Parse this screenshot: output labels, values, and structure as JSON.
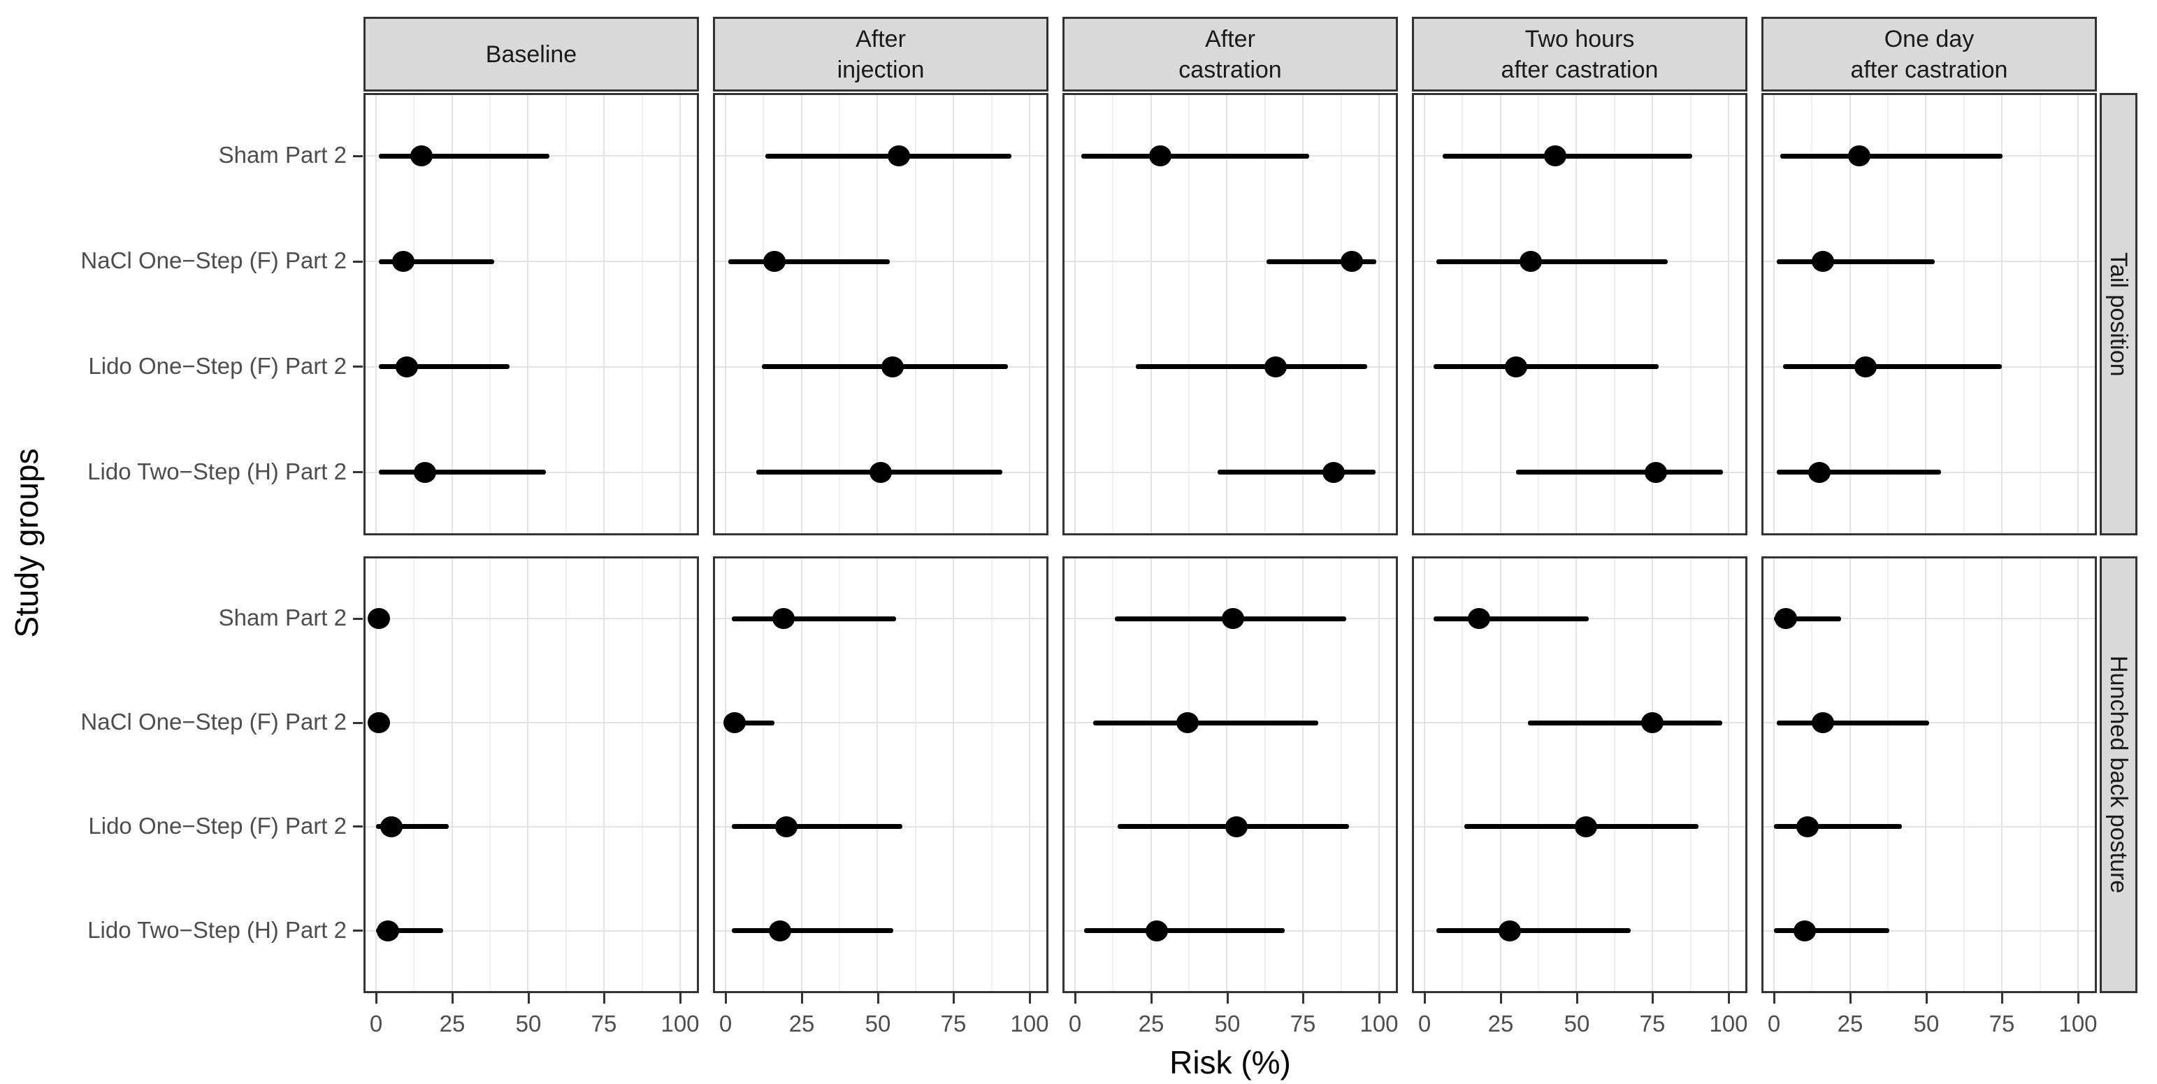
{
  "colors": {
    "background": "#ffffff",
    "strip_fill": "#d9d9d9",
    "panel_border": "#333333",
    "grid_major": "#e3e3e3",
    "grid_minor": "#f0f0f0",
    "data_black": "#000000",
    "axis_text": "#4d4d4d"
  },
  "chart_data": {
    "type": "scatter",
    "subtype": "faceted-forest-plot-dot-with-interval",
    "title": "",
    "xlabel": "Risk (%)",
    "ylabel": "Study groups",
    "xlim": [
      0,
      100
    ],
    "x_ticks": [
      0,
      25,
      50,
      75,
      100
    ],
    "grid": "vertical major+minor, horizontal major per group row",
    "legend": "none",
    "facet_columns": [
      "Baseline",
      "After\ninjection",
      "After\ncastration",
      "Two hours\nafter castration",
      "One day\nafter castration"
    ],
    "facet_rows": [
      "Tail position",
      "Hunched back posture"
    ],
    "groups_top_to_bottom": [
      "Sham Part 2",
      "NaCl One−Step (F) Part 2",
      "Lido One−Step (F) Part 2",
      "Lido Two−Step (H) Part 2"
    ],
    "series": [
      {
        "facet_row": "Tail position",
        "facet_col": "Baseline",
        "points": [
          {
            "group": "Sham Part 2",
            "risk": 15,
            "lo": 1,
            "hi": 57
          },
          {
            "group": "NaCl One−Step (F) Part 2",
            "risk": 9,
            "lo": 1,
            "hi": 39
          },
          {
            "group": "Lido One−Step (F) Part 2",
            "risk": 10,
            "lo": 1,
            "hi": 44
          },
          {
            "group": "Lido Two−Step (H) Part 2",
            "risk": 16,
            "lo": 1,
            "hi": 56
          }
        ]
      },
      {
        "facet_row": "Tail position",
        "facet_col": "After\ninjection",
        "points": [
          {
            "group": "Sham Part 2",
            "risk": 57,
            "lo": 13,
            "hi": 94
          },
          {
            "group": "NaCl One−Step (F) Part 2",
            "risk": 16,
            "lo": 1,
            "hi": 54
          },
          {
            "group": "Lido One−Step (F) Part 2",
            "risk": 55,
            "lo": 12,
            "hi": 93
          },
          {
            "group": "Lido Two−Step (H) Part 2",
            "risk": 51,
            "lo": 10,
            "hi": 91
          }
        ]
      },
      {
        "facet_row": "Tail position",
        "facet_col": "After\ncastration",
        "points": [
          {
            "group": "Sham Part 2",
            "risk": 28,
            "lo": 2,
            "hi": 77
          },
          {
            "group": "NaCl One−Step (F) Part 2",
            "risk": 91,
            "lo": 63,
            "hi": 99
          },
          {
            "group": "Lido One−Step (F) Part 2",
            "risk": 66,
            "lo": 20,
            "hi": 96
          },
          {
            "group": "Lido Two−Step (H) Part 2",
            "risk": 85,
            "lo": 47,
            "hi": 99
          }
        ]
      },
      {
        "facet_row": "Tail position",
        "facet_col": "Two hours\nafter castration",
        "points": [
          {
            "group": "Sham Part 2",
            "risk": 43,
            "lo": 6,
            "hi": 88
          },
          {
            "group": "NaCl One−Step (F) Part 2",
            "risk": 35,
            "lo": 4,
            "hi": 80
          },
          {
            "group": "Lido One−Step (F) Part 2",
            "risk": 30,
            "lo": 3,
            "hi": 77
          },
          {
            "group": "Lido Two−Step (H) Part 2",
            "risk": 76,
            "lo": 30,
            "hi": 98
          }
        ]
      },
      {
        "facet_row": "Tail position",
        "facet_col": "One day\nafter castration",
        "points": [
          {
            "group": "Sham Part 2",
            "risk": 28,
            "lo": 2,
            "hi": 75
          },
          {
            "group": "NaCl One−Step (F) Part 2",
            "risk": 16,
            "lo": 1,
            "hi": 53
          },
          {
            "group": "Lido One−Step (F) Part 2",
            "risk": 30,
            "lo": 3,
            "hi": 75
          },
          {
            "group": "Lido Two−Step (H) Part 2",
            "risk": 15,
            "lo": 1,
            "hi": 55
          }
        ]
      },
      {
        "facet_row": "Hunched back posture",
        "facet_col": "Baseline",
        "points": [
          {
            "group": "Sham Part 2",
            "risk": 1,
            "lo": 0,
            "hi": 4
          },
          {
            "group": "NaCl One−Step (F) Part 2",
            "risk": 1,
            "lo": 0,
            "hi": 4
          },
          {
            "group": "Lido One−Step (F) Part 2",
            "risk": 5,
            "lo": 0,
            "hi": 24
          },
          {
            "group": "Lido Two−Step (H) Part 2",
            "risk": 4,
            "lo": 0,
            "hi": 22
          }
        ]
      },
      {
        "facet_row": "Hunched back posture",
        "facet_col": "After\ninjection",
        "points": [
          {
            "group": "Sham Part 2",
            "risk": 19,
            "lo": 2,
            "hi": 56
          },
          {
            "group": "NaCl One−Step (F) Part 2",
            "risk": 3,
            "lo": 0,
            "hi": 16
          },
          {
            "group": "Lido One−Step (F) Part 2",
            "risk": 20,
            "lo": 2,
            "hi": 58
          },
          {
            "group": "Lido Two−Step (H) Part 2",
            "risk": 18,
            "lo": 2,
            "hi": 55
          }
        ]
      },
      {
        "facet_row": "Hunched back posture",
        "facet_col": "After\ncastration",
        "points": [
          {
            "group": "Sham Part 2",
            "risk": 52,
            "lo": 13,
            "hi": 89
          },
          {
            "group": "NaCl One−Step (F) Part 2",
            "risk": 37,
            "lo": 6,
            "hi": 80
          },
          {
            "group": "Lido One−Step (F) Part 2",
            "risk": 53,
            "lo": 14,
            "hi": 90
          },
          {
            "group": "Lido Two−Step (H) Part 2",
            "risk": 27,
            "lo": 3,
            "hi": 69
          }
        ]
      },
      {
        "facet_row": "Hunched back posture",
        "facet_col": "Two hours\nafter castration",
        "points": [
          {
            "group": "Sham Part 2",
            "risk": 18,
            "lo": 3,
            "hi": 54
          },
          {
            "group": "NaCl One−Step (F) Part 2",
            "risk": 75,
            "lo": 34,
            "hi": 98
          },
          {
            "group": "Lido One−Step (F) Part 2",
            "risk": 53,
            "lo": 13,
            "hi": 90
          },
          {
            "group": "Lido Two−Step (H) Part 2",
            "risk": 28,
            "lo": 4,
            "hi": 68
          }
        ]
      },
      {
        "facet_row": "Hunched back posture",
        "facet_col": "One day\nafter castration",
        "points": [
          {
            "group": "Sham Part 2",
            "risk": 4,
            "lo": 0,
            "hi": 22
          },
          {
            "group": "NaCl One−Step (F) Part 2",
            "risk": 16,
            "lo": 1,
            "hi": 51
          },
          {
            "group": "Lido One−Step (F) Part 2",
            "risk": 11,
            "lo": 0,
            "hi": 42
          },
          {
            "group": "Lido Two−Step (H) Part 2",
            "risk": 10,
            "lo": 0,
            "hi": 38
          }
        ]
      }
    ]
  }
}
